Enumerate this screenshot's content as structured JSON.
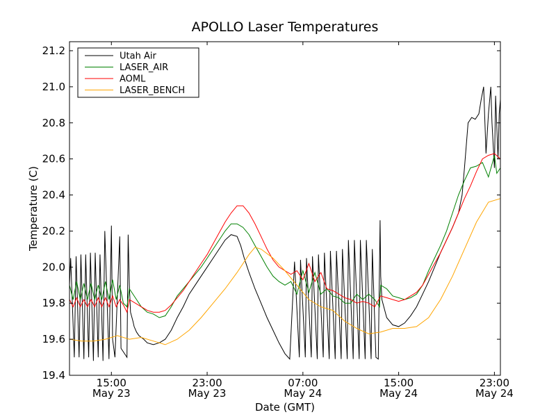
{
  "chart_data": {
    "type": "line",
    "title": "APOLLO Laser Temperatures",
    "xlabel": "Date (GMT)",
    "ylabel": "Temperature (C)",
    "xlim": [
      0,
      36
    ],
    "ylim": [
      19.4,
      21.25
    ],
    "yticks": [
      19.4,
      19.6,
      19.8,
      20.0,
      20.2,
      20.4,
      20.6,
      20.8,
      21.0,
      21.2
    ],
    "ytick_labels": [
      "19.4",
      "19.6",
      "19.8",
      "20.0",
      "20.2",
      "20.4",
      "20.6",
      "20.8",
      "21.0",
      "21.2"
    ],
    "xticks": [
      {
        "x": 3.5,
        "time": "15:00",
        "date": "May 23"
      },
      {
        "x": 11.5,
        "time": "23:00",
        "date": "May 23"
      },
      {
        "x": 19.5,
        "time": "07:00",
        "date": "May 24"
      },
      {
        "x": 27.5,
        "time": "15:00",
        "date": "May 24"
      },
      {
        "x": 35.5,
        "time": "23:00",
        "date": "May 24"
      }
    ],
    "legend_position": "top-left",
    "series": [
      {
        "name": "Utah Air",
        "color": "#000000",
        "x": [
          0,
          0.1,
          0.4,
          0.55,
          0.8,
          0.95,
          1.2,
          1.35,
          1.6,
          1.75,
          2.0,
          2.15,
          2.4,
          2.55,
          2.8,
          2.95,
          3.3,
          3.5,
          3.6,
          3.8,
          4.2,
          4.3,
          4.8,
          4.9,
          5.0,
          5.1,
          5.3,
          5.4,
          5.6,
          5.8,
          6.0,
          6.2,
          6.5,
          7.0,
          7.5,
          8.0,
          8.5,
          9.0,
          9.5,
          10.0,
          10.5,
          11.0,
          11.5,
          12.0,
          12.5,
          13.0,
          13.5,
          14.0,
          14.3,
          14.6,
          15.0,
          15.5,
          16.0,
          16.5,
          17.0,
          17.5,
          18.0,
          18.4,
          18.8,
          19.2,
          19.3,
          19.7,
          19.8,
          20.2,
          20.3,
          20.7,
          20.8,
          21.2,
          21.3,
          21.7,
          21.8,
          22.2,
          22.3,
          22.7,
          22.8,
          23.2,
          23.3,
          23.7,
          23.8,
          24.2,
          24.3,
          24.7,
          24.8,
          25.2,
          25.3,
          25.6,
          25.8,
          25.95,
          26.0,
          26.1,
          26.5,
          27.0,
          27.5,
          28.0,
          28.5,
          29.0,
          29.5,
          30.0,
          30.5,
          31.0,
          31.5,
          32.0,
          32.5,
          32.8,
          33.0,
          33.3,
          33.6,
          33.9,
          34.2,
          34.4,
          34.6,
          34.8,
          35.0,
          35.2,
          35.3,
          35.5,
          35.6,
          35.8,
          35.9,
          36.0
        ],
        "y": [
          19.9,
          20.05,
          19.5,
          20.06,
          19.5,
          20.07,
          19.49,
          20.07,
          19.5,
          20.08,
          19.48,
          20.08,
          19.5,
          20.07,
          19.48,
          20.2,
          19.49,
          20.23,
          19.6,
          19.5,
          20.17,
          19.55,
          19.5,
          20.18,
          19.9,
          19.75,
          19.7,
          19.67,
          19.64,
          19.62,
          19.61,
          19.6,
          19.58,
          19.57,
          19.58,
          19.6,
          19.65,
          19.72,
          19.78,
          19.85,
          19.9,
          19.95,
          20.0,
          20.05,
          20.1,
          20.15,
          20.18,
          20.17,
          20.12,
          20.05,
          19.97,
          19.88,
          19.8,
          19.72,
          19.65,
          19.58,
          19.52,
          19.49,
          20.03,
          19.5,
          20.04,
          19.5,
          20.05,
          19.5,
          20.06,
          19.49,
          20.07,
          19.5,
          20.08,
          19.49,
          20.09,
          19.49,
          20.09,
          19.49,
          20.1,
          19.49,
          20.15,
          19.49,
          20.15,
          19.49,
          20.15,
          19.49,
          20.15,
          19.49,
          20.1,
          19.5,
          19.49,
          20.26,
          19.95,
          19.82,
          19.72,
          19.68,
          19.67,
          19.69,
          19.73,
          19.78,
          19.85,
          19.92,
          20.0,
          20.08,
          20.15,
          20.22,
          20.3,
          20.4,
          20.55,
          20.8,
          20.83,
          20.82,
          20.85,
          20.93,
          21.0,
          20.63,
          20.85,
          21.0,
          20.8,
          20.55,
          20.95,
          20.6,
          20.85,
          20.93
        ]
      },
      {
        "name": "LASER_AIR",
        "color": "#008000",
        "x": [
          0,
          0.3,
          0.6,
          0.9,
          1.2,
          1.5,
          1.8,
          2.1,
          2.4,
          2.7,
          3.0,
          3.3,
          3.6,
          3.9,
          4.2,
          4.5,
          4.8,
          5.0,
          5.2,
          5.5,
          6.0,
          6.5,
          7.0,
          7.5,
          8.0,
          8.5,
          9.0,
          9.5,
          10.0,
          10.5,
          11.0,
          11.5,
          12.0,
          12.5,
          13.0,
          13.5,
          14.0,
          14.5,
          15.0,
          15.5,
          16.0,
          16.5,
          17.0,
          17.5,
          18.0,
          18.5,
          19.0,
          19.5,
          20.0,
          20.5,
          21.0,
          21.5,
          22.0,
          22.5,
          23.0,
          23.5,
          24.0,
          24.5,
          25.0,
          25.5,
          25.9,
          26.0,
          26.5,
          27.0,
          27.5,
          28.0,
          28.5,
          29.0,
          29.5,
          30.0,
          30.5,
          31.0,
          31.5,
          32.0,
          32.5,
          33.0,
          33.5,
          34.0,
          34.5,
          35.0,
          35.3,
          35.5,
          35.7,
          36.0
        ],
        "y": [
          19.9,
          19.82,
          19.92,
          19.82,
          19.91,
          19.82,
          19.91,
          19.82,
          19.9,
          19.82,
          19.92,
          19.82,
          19.93,
          19.82,
          19.9,
          19.8,
          19.78,
          19.88,
          19.86,
          19.83,
          19.78,
          19.75,
          19.74,
          19.72,
          19.73,
          19.78,
          19.84,
          19.88,
          19.92,
          19.96,
          20.0,
          20.05,
          20.1,
          20.15,
          20.2,
          20.24,
          20.24,
          20.22,
          20.18,
          20.12,
          20.06,
          20.0,
          19.95,
          19.92,
          19.9,
          19.92,
          19.85,
          19.98,
          19.86,
          19.97,
          19.85,
          19.88,
          19.84,
          19.83,
          19.8,
          19.8,
          19.85,
          19.82,
          19.85,
          19.82,
          19.78,
          19.9,
          19.88,
          19.84,
          19.83,
          19.82,
          19.83,
          19.85,
          19.9,
          19.98,
          20.05,
          20.12,
          20.2,
          20.3,
          20.4,
          20.48,
          20.55,
          20.56,
          20.58,
          20.5,
          20.57,
          20.62,
          20.52,
          20.55
        ]
      },
      {
        "name": "AOML",
        "color": "#ff0000",
        "x": [
          0,
          0.3,
          0.6,
          0.9,
          1.2,
          1.5,
          1.8,
          2.1,
          2.4,
          2.7,
          3.0,
          3.3,
          3.6,
          3.9,
          4.2,
          4.5,
          4.8,
          5.0,
          5.5,
          6.0,
          6.5,
          7.0,
          7.5,
          8.0,
          8.5,
          9.0,
          9.5,
          10.0,
          10.5,
          11.0,
          11.5,
          12.0,
          12.5,
          13.0,
          13.5,
          14.0,
          14.5,
          15.0,
          15.5,
          16.0,
          16.5,
          17.0,
          17.5,
          18.0,
          18.5,
          19.0,
          19.5,
          20.0,
          20.5,
          21.0,
          21.5,
          22.0,
          22.5,
          23.0,
          23.5,
          24.0,
          24.5,
          25.0,
          25.5,
          26.0,
          26.5,
          27.0,
          27.5,
          28.0,
          28.5,
          29.0,
          29.5,
          30.0,
          30.5,
          31.0,
          31.5,
          32.0,
          32.5,
          33.0,
          33.5,
          34.0,
          34.5,
          35.0,
          35.5,
          36.0
        ],
        "y": [
          19.82,
          19.78,
          19.83,
          19.78,
          19.82,
          19.78,
          19.82,
          19.78,
          19.83,
          19.78,
          19.83,
          19.78,
          19.84,
          19.78,
          19.82,
          19.79,
          19.75,
          19.82,
          19.8,
          19.78,
          19.76,
          19.75,
          19.75,
          19.76,
          19.79,
          19.83,
          19.87,
          19.92,
          19.97,
          20.02,
          20.07,
          20.13,
          20.19,
          20.25,
          20.3,
          20.34,
          20.34,
          20.3,
          20.24,
          20.17,
          20.1,
          20.04,
          20.0,
          19.98,
          19.96,
          19.98,
          19.93,
          20.02,
          19.92,
          19.97,
          19.88,
          19.87,
          19.85,
          19.83,
          19.82,
          19.8,
          19.81,
          19.8,
          19.78,
          19.84,
          19.83,
          19.82,
          19.81,
          19.82,
          19.84,
          19.86,
          19.9,
          19.96,
          20.02,
          20.08,
          20.15,
          20.22,
          20.3,
          20.38,
          20.45,
          20.53,
          20.6,
          20.62,
          20.63,
          20.6
        ]
      },
      {
        "name": "LASER_BENCH",
        "color": "#ffa500",
        "x": [
          0,
          1,
          2,
          3,
          4,
          5,
          6,
          7,
          8,
          9,
          10,
          11,
          12,
          13,
          14,
          15,
          15.5,
          16,
          17,
          18,
          19,
          20,
          21,
          22,
          23,
          24,
          25,
          26,
          27,
          28,
          29,
          30,
          31,
          32,
          33,
          34,
          35,
          36
        ],
        "y": [
          19.6,
          19.59,
          19.59,
          19.6,
          19.62,
          19.6,
          19.61,
          19.59,
          19.57,
          19.6,
          19.65,
          19.72,
          19.8,
          19.88,
          19.97,
          20.07,
          20.11,
          20.1,
          20.05,
          19.98,
          19.9,
          19.82,
          19.78,
          19.76,
          19.7,
          19.66,
          19.63,
          19.64,
          19.66,
          19.66,
          19.67,
          19.72,
          19.82,
          19.95,
          20.1,
          20.25,
          20.36,
          20.38
        ]
      }
    ]
  }
}
